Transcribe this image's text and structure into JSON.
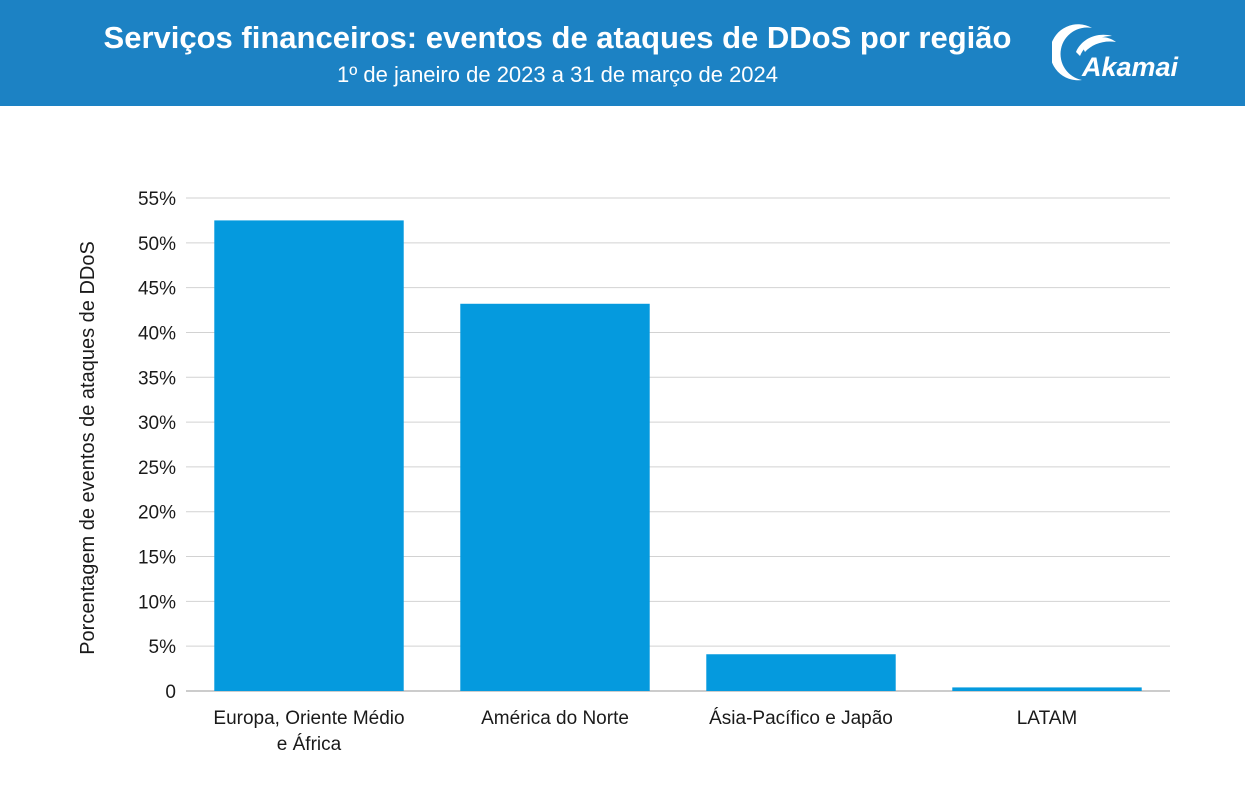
{
  "header": {
    "title": "Serviços financeiros: eventos de ataques de DDoS por região",
    "subtitle": "1º de janeiro de 2023 a 31 de março de 2024",
    "logo_text": "Akamai",
    "background_color": "#1c82c4"
  },
  "chart_data": {
    "type": "bar",
    "ylabel": "Porcentagem de eventos de ataques de DDoS",
    "xlabel": "",
    "ylim": [
      0,
      55
    ],
    "y_ticks": [
      "0",
      "5%",
      "10%",
      "15%",
      "20%",
      "25%",
      "30%",
      "35%",
      "40%",
      "45%",
      "50%",
      "55%"
    ],
    "y_tick_values": [
      0,
      5,
      10,
      15,
      20,
      25,
      30,
      35,
      40,
      45,
      50,
      55
    ],
    "categories": [
      [
        "Europa, Oriente Médio",
        "e África"
      ],
      [
        "América do Norte"
      ],
      [
        "Ásia-Pacífico e Japão"
      ],
      [
        "LATAM"
      ]
    ],
    "values": [
      52.5,
      43.2,
      4.1,
      0.4
    ],
    "bar_color": "#059ade",
    "grid": true
  }
}
